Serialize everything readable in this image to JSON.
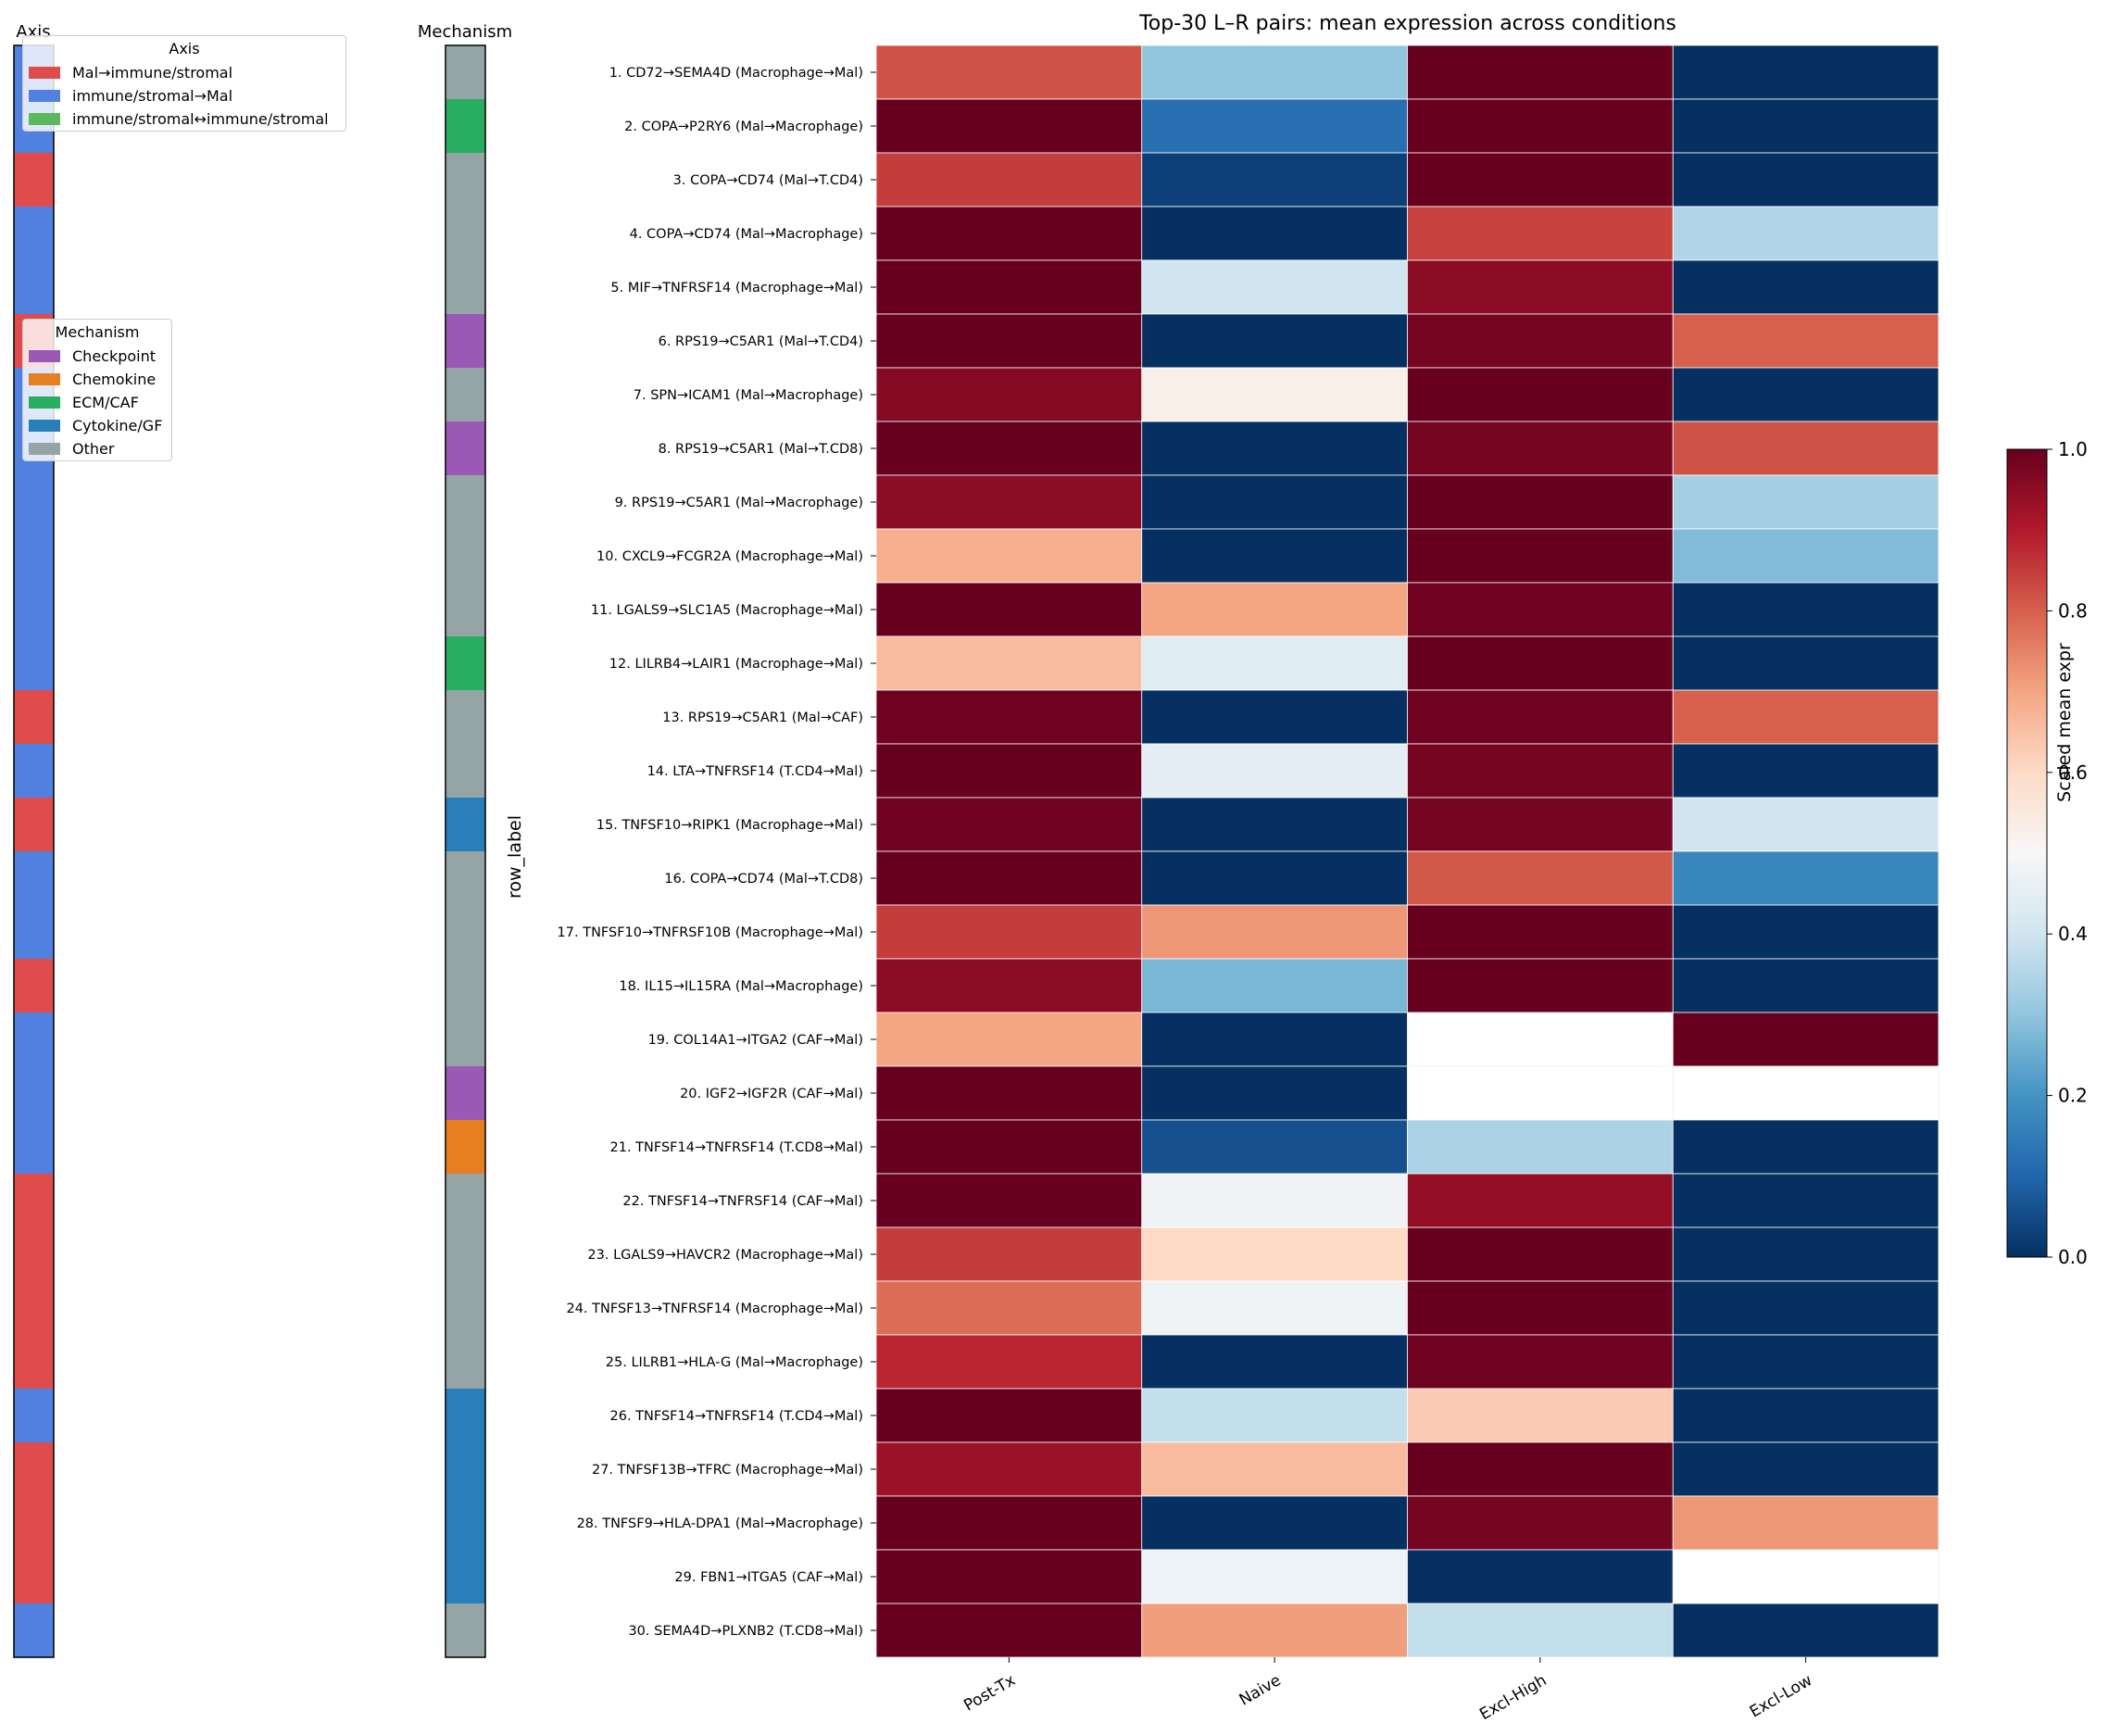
{
  "chart_data": {
    "type": "heatmap",
    "title": "Top-30 L–R pairs: mean expression across conditions",
    "ylabel": "row_label",
    "columns": [
      "Post-Tx",
      "Naive",
      "Excl-High",
      "Excl-Low"
    ],
    "rows": [
      "1. CD72→SEMA4D (Macrophage→Mal)",
      "2. COPA→P2RY6 (Mal→Macrophage)",
      "3. COPA→CD74 (Mal→T.CD4)",
      "4. COPA→CD74 (Mal→Macrophage)",
      "5. MIF→TNFRSF14 (Macrophage→Mal)",
      "6. RPS19→C5AR1 (Mal→T.CD4)",
      "7. SPN→ICAM1 (Mal→Macrophage)",
      "8. RPS19→C5AR1 (Mal→T.CD8)",
      "9. RPS19→C5AR1 (Mal→Macrophage)",
      "10. CXCL9→FCGR2A (Macrophage→Mal)",
      "11. LGALS9→SLC1A5 (Macrophage→Mal)",
      "12. LILRB4→LAIR1 (Macrophage→Mal)",
      "13. RPS19→C5AR1 (Mal→CAF)",
      "14. LTA→TNFRSF14 (T.CD4→Mal)",
      "15. TNFSF10→RIPK1 (Macrophage→Mal)",
      "16. COPA→CD74 (Mal→T.CD8)",
      "17. TNFSF10→TNFRSF10B (Macrophage→Mal)",
      "18. IL15→IL15RA (Mal→Macrophage)",
      "19. COL14A1→ITGA2 (CAF→Mal)",
      "20. IGF2→IGF2R (CAF→Mal)",
      "21. TNFSF14→TNFRSF14 (T.CD8→Mal)",
      "22. TNFSF14→TNFRSF14 (CAF→Mal)",
      "23. LGALS9→HAVCR2 (Macrophage→Mal)",
      "24. TNFSF13→TNFRSF14 (Macrophage→Mal)",
      "25. LILRB1→HLA-G (Mal→Macrophage)",
      "26. TNFSF14→TNFRSF14 (T.CD4→Mal)",
      "27. TNFSF13B→TFRC (Macrophage→Mal)",
      "28. TNFSF9→HLA-DPA1 (Mal→Macrophage)",
      "29. FBN1→ITGA5 (CAF→Mal)",
      "30. SEMA4D→PLXNB2 (T.CD8→Mal)"
    ],
    "values": [
      [
        0.82,
        0.3,
        1.0,
        0.0
      ],
      [
        1.0,
        0.12,
        1.0,
        0.0
      ],
      [
        0.85,
        0.03,
        1.0,
        0.0
      ],
      [
        1.0,
        0.0,
        0.84,
        0.35
      ],
      [
        1.0,
        0.4,
        0.95,
        0.0
      ],
      [
        1.0,
        0.0,
        0.98,
        0.8
      ],
      [
        0.96,
        0.53,
        1.0,
        0.0
      ],
      [
        1.0,
        0.0,
        0.98,
        0.82
      ],
      [
        0.95,
        0.0,
        1.0,
        0.33
      ],
      [
        0.68,
        0.0,
        1.0,
        0.28
      ],
      [
        1.0,
        0.7,
        0.99,
        0.0
      ],
      [
        0.66,
        0.44,
        1.0,
        0.0
      ],
      [
        0.99,
        0.0,
        0.99,
        0.8
      ],
      [
        1.0,
        0.45,
        0.98,
        0.0
      ],
      [
        0.99,
        0.0,
        0.98,
        0.4
      ],
      [
        1.0,
        0.0,
        0.81,
        0.17
      ],
      [
        0.85,
        0.72,
        1.0,
        0.0
      ],
      [
        0.95,
        0.27,
        1.0,
        0.0
      ],
      [
        0.7,
        0.0,
        null,
        1.0
      ],
      [
        1.0,
        0.0,
        null,
        null
      ],
      [
        1.0,
        0.06,
        0.34,
        0.0
      ],
      [
        1.0,
        0.48,
        0.94,
        0.0
      ],
      [
        0.85,
        0.6,
        1.0,
        0.0
      ],
      [
        0.78,
        0.48,
        1.0,
        0.0
      ],
      [
        0.88,
        0.0,
        0.99,
        0.0
      ],
      [
        1.0,
        0.38,
        0.63,
        0.0
      ],
      [
        0.93,
        0.66,
        1.0,
        0.0
      ],
      [
        1.0,
        0.0,
        0.98,
        0.72
      ],
      [
        1.0,
        0.47,
        0.0,
        null
      ],
      [
        1.0,
        0.71,
        0.38,
        0.0
      ]
    ],
    "colorbar": {
      "label": "Scaled mean expr",
      "range": [
        0,
        1
      ],
      "ticks": [
        "0.0",
        "0.2",
        "0.4",
        "0.6",
        "0.8",
        "1.0"
      ],
      "colormap": "RdBu_r"
    },
    "grid": false
  },
  "annotations": {
    "axis": {
      "title": "Axis",
      "legend_title": "Axis",
      "legend_placement": "top-left",
      "categories": [
        {
          "label": "Mal→immune/stromal",
          "color": "#e04c4c"
        },
        {
          "label": "immune/stromal→Mal",
          "color": "#5080e0"
        },
        {
          "label": "immune/stromal↔immune/stromal",
          "color": "#5cb85c"
        }
      ],
      "row_categories": [
        1,
        1,
        0,
        1,
        1,
        0,
        1,
        1,
        1,
        1,
        1,
        1,
        0,
        1,
        0,
        1,
        1,
        0,
        1,
        1,
        1,
        0,
        0,
        0,
        0,
        1,
        0,
        0,
        0,
        1
      ]
    },
    "mechanism": {
      "title": "Mechanism",
      "legend_title": "Mechanism",
      "legend_placement": "left",
      "categories": [
        {
          "label": "Checkpoint",
          "color": "#9b59b6"
        },
        {
          "label": "Chemokine",
          "color": "#e67e22"
        },
        {
          "label": "ECM/CAF",
          "color": "#27ae60"
        },
        {
          "label": "Cytokine/GF",
          "color": "#2980b9"
        },
        {
          "label": "Other",
          "color": "#95a5a6"
        }
      ],
      "row_categories": [
        4,
        2,
        4,
        4,
        4,
        0,
        4,
        0,
        4,
        4,
        4,
        2,
        4,
        4,
        3,
        4,
        4,
        4,
        4,
        0,
        1,
        4,
        4,
        4,
        4,
        3,
        3,
        3,
        3,
        4
      ]
    }
  }
}
